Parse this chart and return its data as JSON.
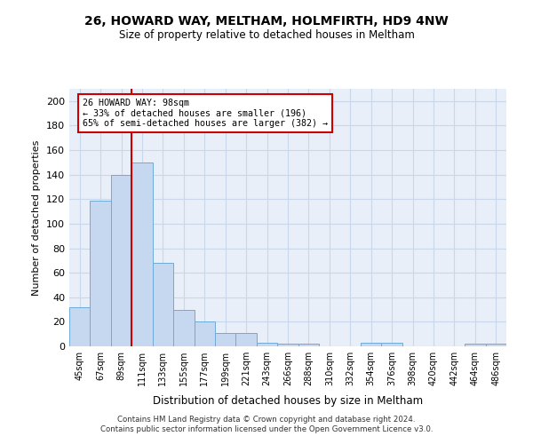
{
  "title_line1": "26, HOWARD WAY, MELTHAM, HOLMFIRTH, HD9 4NW",
  "title_line2": "Size of property relative to detached houses in Meltham",
  "xlabel": "Distribution of detached houses by size in Meltham",
  "ylabel": "Number of detached properties",
  "categories": [
    "45sqm",
    "67sqm",
    "89sqm",
    "111sqm",
    "133sqm",
    "155sqm",
    "177sqm",
    "199sqm",
    "221sqm",
    "243sqm",
    "266sqm",
    "288sqm",
    "310sqm",
    "332sqm",
    "354sqm",
    "376sqm",
    "398sqm",
    "420sqm",
    "442sqm",
    "464sqm",
    "486sqm"
  ],
  "values": [
    32,
    119,
    140,
    150,
    68,
    30,
    20,
    11,
    11,
    3,
    2,
    2,
    0,
    0,
    3,
    3,
    0,
    0,
    0,
    2,
    2
  ],
  "bar_color": "#c5d8f0",
  "bar_edge_color": "#6eabd8",
  "property_line_x": 2.5,
  "annotation_text": "26 HOWARD WAY: 98sqm\n← 33% of detached houses are smaller (196)\n65% of semi-detached houses are larger (382) →",
  "annotation_box_color": "#ffffff",
  "annotation_box_edge_color": "#cc0000",
  "red_line_color": "#cc0000",
  "ylim": [
    0,
    210
  ],
  "yticks": [
    0,
    20,
    40,
    60,
    80,
    100,
    120,
    140,
    160,
    180,
    200
  ],
  "grid_color": "#c8d8ea",
  "background_color": "#e8eff8",
  "footer_line1": "Contains HM Land Registry data © Crown copyright and database right 2024.",
  "footer_line2": "Contains public sector information licensed under the Open Government Licence v3.0."
}
